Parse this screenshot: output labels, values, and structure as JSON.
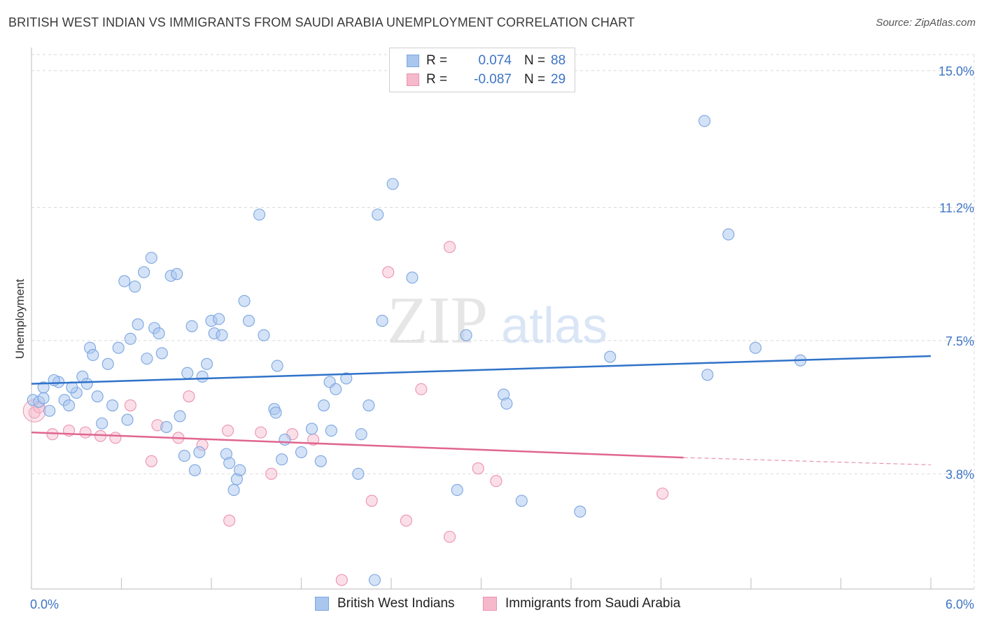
{
  "title": "BRITISH WEST INDIAN VS IMMIGRANTS FROM SAUDI ARABIA UNEMPLOYMENT CORRELATION CHART",
  "source": "Source: ZipAtlas.com",
  "watermark": {
    "zip": "ZIP",
    "atlas": "atlas"
  },
  "legend": {
    "r_label": "R =",
    "n_label": "N =",
    "series1": {
      "r": "0.074",
      "n": "88"
    },
    "series2": {
      "r": "-0.087",
      "n": "29"
    }
  },
  "bottom_legend": {
    "series1_label": "British West Indians",
    "series2_label": "Immigrants from Saudi Arabia"
  },
  "colors": {
    "series1_fill": "#a9c6ef",
    "series1_stroke": "#7aa6e0",
    "series1_line": "#2f72c9",
    "series2_fill": "#f6b9cc",
    "series2_stroke": "#ec92ae",
    "series2_line": "#e0668f",
    "tick_text": "#3d74c4",
    "grid": "#d9d9d9"
  },
  "chart_data": {
    "type": "scatter",
    "title": "BRITISH WEST INDIAN VS IMMIGRANTS FROM SAUDI ARABIA UNEMPLOYMENT CORRELATION CHART",
    "xlabel": "",
    "ylabel": "Unemployment",
    "xlim": [
      0,
      6
    ],
    "ylim": [
      0.6,
      15.6
    ],
    "x_tick_labels": [
      "0.0%",
      "6.0%"
    ],
    "y_ticks": [
      3.8,
      7.5,
      11.2,
      15.0
    ],
    "y_tick_labels": [
      "3.8%",
      "7.5%",
      "11.2%",
      "15.0%"
    ],
    "series": [
      {
        "name": "British West Indians",
        "r": 0.074,
        "n": 88,
        "trend": {
          "x": [
            0,
            6.0
          ],
          "y": [
            6.3,
            7.07
          ]
        },
        "points": [
          [
            0.01,
            5.85
          ],
          [
            0.05,
            5.8
          ],
          [
            0.08,
            5.9
          ],
          [
            0.12,
            5.55
          ],
          [
            0.18,
            6.35
          ],
          [
            0.22,
            5.85
          ],
          [
            0.25,
            5.7
          ],
          [
            0.3,
            6.05
          ],
          [
            0.34,
            6.5
          ],
          [
            0.37,
            6.3
          ],
          [
            0.39,
            7.3
          ],
          [
            0.41,
            7.1
          ],
          [
            0.44,
            5.95
          ],
          [
            0.47,
            5.2
          ],
          [
            0.51,
            6.85
          ],
          [
            0.54,
            5.7
          ],
          [
            0.58,
            7.3
          ],
          [
            0.62,
            9.15
          ],
          [
            0.64,
            5.3
          ],
          [
            0.66,
            7.55
          ],
          [
            0.69,
            9.0
          ],
          [
            0.71,
            7.95
          ],
          [
            0.75,
            9.4
          ],
          [
            0.77,
            7.0
          ],
          [
            0.8,
            9.8
          ],
          [
            0.82,
            7.85
          ],
          [
            0.85,
            7.7
          ],
          [
            0.87,
            7.15
          ],
          [
            0.9,
            5.1
          ],
          [
            0.93,
            9.3
          ],
          [
            0.97,
            9.35
          ],
          [
            0.99,
            5.4
          ],
          [
            1.02,
            4.3
          ],
          [
            1.04,
            6.6
          ],
          [
            1.07,
            7.9
          ],
          [
            1.09,
            3.9
          ],
          [
            1.12,
            4.4
          ],
          [
            1.14,
            6.5
          ],
          [
            1.17,
            6.85
          ],
          [
            1.2,
            8.05
          ],
          [
            1.22,
            7.7
          ],
          [
            1.25,
            8.1
          ],
          [
            1.27,
            7.65
          ],
          [
            1.3,
            4.35
          ],
          [
            1.32,
            4.1
          ],
          [
            1.35,
            3.35
          ],
          [
            1.37,
            3.65
          ],
          [
            1.39,
            3.9
          ],
          [
            1.42,
            8.6
          ],
          [
            1.45,
            8.05
          ],
          [
            1.52,
            11.0
          ],
          [
            1.55,
            7.65
          ],
          [
            1.62,
            5.6
          ],
          [
            1.64,
            6.8
          ],
          [
            1.67,
            4.2
          ],
          [
            1.69,
            4.75
          ],
          [
            1.87,
            5.05
          ],
          [
            1.93,
            4.15
          ],
          [
            1.95,
            5.7
          ],
          [
            1.99,
            6.35
          ],
          [
            2.03,
            6.15
          ],
          [
            2.1,
            6.45
          ],
          [
            2.18,
            3.8
          ],
          [
            2.2,
            4.9
          ],
          [
            2.25,
            5.7
          ],
          [
            2.29,
            0.85
          ],
          [
            2.31,
            11.0
          ],
          [
            2.34,
            8.05
          ],
          [
            2.41,
            11.85
          ],
          [
            2.54,
            9.25
          ],
          [
            2.84,
            3.35
          ],
          [
            2.9,
            7.65
          ],
          [
            3.15,
            6.0
          ],
          [
            3.17,
            5.75
          ],
          [
            3.27,
            3.05
          ],
          [
            3.66,
            2.75
          ],
          [
            3.86,
            7.05
          ],
          [
            4.49,
            13.6
          ],
          [
            4.51,
            6.55
          ],
          [
            4.65,
            10.45
          ],
          [
            4.83,
            7.3
          ],
          [
            5.13,
            6.95
          ],
          [
            2.0,
            5.0
          ],
          [
            1.8,
            4.4
          ],
          [
            1.63,
            5.5
          ],
          [
            0.08,
            6.2
          ],
          [
            0.15,
            6.4
          ],
          [
            0.27,
            6.2
          ]
        ]
      },
      {
        "name": "Immigrants from Saudi Arabia",
        "r": -0.087,
        "n": 29,
        "trend": {
          "x": [
            0,
            4.35
          ],
          "y": [
            4.95,
            4.25
          ]
        },
        "trend_dashed": {
          "x": [
            4.35,
            6.0
          ],
          "y": [
            4.25,
            4.05
          ]
        },
        "points": [
          [
            0.02,
            5.5
          ],
          [
            0.05,
            5.65
          ],
          [
            0.14,
            4.9
          ],
          [
            0.25,
            5.0
          ],
          [
            0.36,
            4.95
          ],
          [
            0.46,
            4.85
          ],
          [
            0.56,
            4.8
          ],
          [
            0.66,
            5.7
          ],
          [
            0.8,
            4.15
          ],
          [
            0.84,
            5.15
          ],
          [
            0.98,
            4.8
          ],
          [
            1.05,
            5.95
          ],
          [
            1.14,
            4.6
          ],
          [
            1.31,
            5.0
          ],
          [
            1.32,
            2.5
          ],
          [
            1.53,
            4.95
          ],
          [
            1.6,
            3.8
          ],
          [
            1.74,
            4.9
          ],
          [
            1.88,
            4.75
          ],
          [
            2.07,
            0.85
          ],
          [
            2.27,
            3.05
          ],
          [
            2.38,
            9.4
          ],
          [
            2.5,
            2.5
          ],
          [
            2.6,
            6.15
          ],
          [
            2.79,
            2.05
          ],
          [
            2.79,
            10.1
          ],
          [
            2.98,
            3.95
          ],
          [
            3.1,
            3.6
          ],
          [
            4.21,
            3.25
          ]
        ]
      }
    ]
  }
}
